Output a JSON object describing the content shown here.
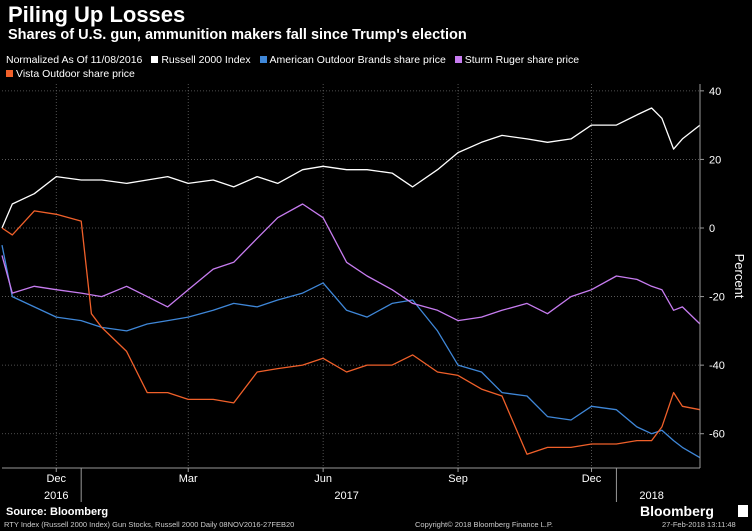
{
  "title": "Piling Up Losses",
  "subtitle": "Shares of U.S. gun, ammunition makers fall since Trump's election",
  "legend": {
    "note": "Normalized As Of 11/08/2016",
    "items": [
      {
        "label": "Russell 2000 Index",
        "color": "#ffffff"
      },
      {
        "label": "American Outdoor Brands share price",
        "color": "#3f87d8"
      },
      {
        "label": "Sturm Ruger share price",
        "color": "#c77cf0"
      },
      {
        "label": "Vista Outdoor share price",
        "color": "#f0602a"
      }
    ]
  },
  "source": "Source: Bloomberg",
  "brand": "Bloomberg",
  "footer_left": "RTY Index (Russell 2000 Index) Gun Stocks, Russell 2000   Daily 08NOV2016-27FEB20",
  "footer_mid": "Copyright© 2018 Bloomberg Finance L.P.",
  "footer_right": "27-Feb-2018 13:11:48",
  "chart_data": {
    "type": "line",
    "ylabel": "Percent",
    "ylim": [
      -70,
      42
    ],
    "yticks": [
      40,
      20,
      0,
      -20,
      -40,
      -60
    ],
    "x_tick_labels": [
      "Dec",
      "Mar",
      "Jun",
      "Sep",
      "Dec"
    ],
    "x_tick_dates": [
      "2016-12-15",
      "2017-03-15",
      "2017-06-15",
      "2017-09-15",
      "2017-12-15"
    ],
    "year_labels": [
      "2016",
      "2017",
      "2018"
    ],
    "year_label_dates": [
      "2016-12-15",
      "2017-07-01",
      "2018-01-25"
    ],
    "year_boundaries": [
      "2017-01-01",
      "2018-01-01"
    ],
    "xlim": [
      "2016-11-08",
      "2018-02-27"
    ],
    "grid": true,
    "legend_position": "top",
    "series": [
      {
        "name": "Russell 2000 Index",
        "color": "#ffffff",
        "x": [
          "2016-11-08",
          "2016-11-15",
          "2016-11-30",
          "2016-12-15",
          "2017-01-01",
          "2017-01-15",
          "2017-02-01",
          "2017-02-15",
          "2017-03-01",
          "2017-03-15",
          "2017-04-01",
          "2017-04-15",
          "2017-05-01",
          "2017-05-15",
          "2017-06-01",
          "2017-06-15",
          "2017-07-01",
          "2017-07-15",
          "2017-08-01",
          "2017-08-15",
          "2017-09-01",
          "2017-09-15",
          "2017-10-01",
          "2017-10-15",
          "2017-11-01",
          "2017-11-15",
          "2017-12-01",
          "2017-12-15",
          "2018-01-01",
          "2018-01-15",
          "2018-01-25",
          "2018-02-01",
          "2018-02-09",
          "2018-02-15",
          "2018-02-27"
        ],
        "values": [
          0,
          7,
          10,
          15,
          14,
          14,
          13,
          14,
          15,
          13,
          14,
          12,
          15,
          13,
          17,
          18,
          17,
          17,
          16,
          12,
          17,
          22,
          25,
          27,
          26,
          25,
          26,
          30,
          30,
          33,
          35,
          32,
          23,
          26,
          30
        ]
      },
      {
        "name": "American Outdoor Brands share price",
        "color": "#3f87d8",
        "x": [
          "2016-11-08",
          "2016-11-15",
          "2016-11-30",
          "2016-12-15",
          "2017-01-01",
          "2017-01-15",
          "2017-02-01",
          "2017-02-15",
          "2017-03-01",
          "2017-03-15",
          "2017-04-01",
          "2017-04-15",
          "2017-05-01",
          "2017-05-15",
          "2017-06-01",
          "2017-06-15",
          "2017-07-01",
          "2017-07-15",
          "2017-08-01",
          "2017-08-15",
          "2017-09-01",
          "2017-09-15",
          "2017-10-01",
          "2017-10-15",
          "2017-11-01",
          "2017-11-15",
          "2017-12-01",
          "2017-12-15",
          "2018-01-01",
          "2018-01-15",
          "2018-01-25",
          "2018-02-01",
          "2018-02-09",
          "2018-02-15",
          "2018-02-27"
        ],
        "values": [
          -5,
          -20,
          -23,
          -26,
          -27,
          -29,
          -30,
          -28,
          -27,
          -26,
          -24,
          -22,
          -23,
          -21,
          -19,
          -16,
          -24,
          -26,
          -22,
          -21,
          -30,
          -40,
          -42,
          -48,
          -49,
          -55,
          -56,
          -52,
          -53,
          -58,
          -60,
          -59,
          -62,
          -64,
          -67
        ]
      },
      {
        "name": "Sturm Ruger share price",
        "color": "#c77cf0",
        "x": [
          "2016-11-08",
          "2016-11-15",
          "2016-11-30",
          "2016-12-15",
          "2017-01-01",
          "2017-01-15",
          "2017-02-01",
          "2017-02-15",
          "2017-03-01",
          "2017-03-15",
          "2017-04-01",
          "2017-04-15",
          "2017-05-01",
          "2017-05-15",
          "2017-06-01",
          "2017-06-15",
          "2017-07-01",
          "2017-07-15",
          "2017-08-01",
          "2017-08-15",
          "2017-09-01",
          "2017-09-15",
          "2017-10-01",
          "2017-10-15",
          "2017-11-01",
          "2017-11-15",
          "2017-12-01",
          "2017-12-15",
          "2018-01-01",
          "2018-01-15",
          "2018-01-25",
          "2018-02-01",
          "2018-02-09",
          "2018-02-15",
          "2018-02-27"
        ],
        "values": [
          -8,
          -19,
          -17,
          -18,
          -19,
          -20,
          -17,
          -20,
          -23,
          -18,
          -12,
          -10,
          -3,
          3,
          7,
          3,
          -10,
          -14,
          -18,
          -22,
          -24,
          -27,
          -26,
          -24,
          -22,
          -25,
          -20,
          -18,
          -14,
          -15,
          -17,
          -18,
          -24,
          -23,
          -28
        ]
      },
      {
        "name": "Vista Outdoor share price",
        "color": "#f0602a",
        "x": [
          "2016-11-08",
          "2016-11-15",
          "2016-11-30",
          "2016-12-15",
          "2017-01-01",
          "2017-01-08",
          "2017-01-15",
          "2017-02-01",
          "2017-02-15",
          "2017-03-01",
          "2017-03-15",
          "2017-04-01",
          "2017-04-15",
          "2017-05-01",
          "2017-05-15",
          "2017-06-01",
          "2017-06-15",
          "2017-07-01",
          "2017-07-15",
          "2017-08-01",
          "2017-08-15",
          "2017-09-01",
          "2017-09-15",
          "2017-10-01",
          "2017-10-15",
          "2017-11-01",
          "2017-11-15",
          "2017-12-01",
          "2017-12-15",
          "2018-01-01",
          "2018-01-15",
          "2018-01-25",
          "2018-02-01",
          "2018-02-09",
          "2018-02-15",
          "2018-02-27"
        ],
        "values": [
          0,
          -2,
          5,
          4,
          2,
          -25,
          -29,
          -36,
          -48,
          -48,
          -50,
          -50,
          -51,
          -42,
          -41,
          -40,
          -38,
          -42,
          -40,
          -40,
          -37,
          -42,
          -43,
          -47,
          -49,
          -66,
          -64,
          -64,
          -63,
          -63,
          -62,
          -62,
          -58,
          -48,
          -52,
          -53
        ]
      }
    ]
  }
}
